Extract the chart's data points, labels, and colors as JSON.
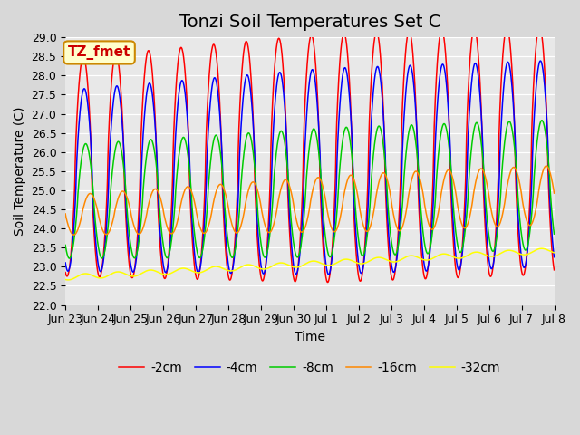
{
  "title": "Tonzi Soil Temperatures Set C",
  "xlabel": "Time",
  "ylabel": "Soil Temperature (C)",
  "ylim": [
    22.0,
    29.0
  ],
  "yticks": [
    22.0,
    22.5,
    23.0,
    23.5,
    24.0,
    24.5,
    25.0,
    25.5,
    26.0,
    26.5,
    27.0,
    27.5,
    28.0,
    28.5,
    29.0
  ],
  "series_colors": [
    "#ff0000",
    "#0000ff",
    "#00cc00",
    "#ff8800",
    "#ffff00"
  ],
  "series_labels": [
    "-2cm",
    "-4cm",
    "-8cm",
    "-16cm",
    "-32cm"
  ],
  "annotation_text": "TZ_fmet",
  "annotation_color": "#cc0000",
  "annotation_bg": "#ffffcc",
  "annotation_border": "#cc8800",
  "fig_bg_color": "#d8d8d8",
  "plot_bg_color": "#e8e8e8",
  "grid_color": "#ffffff",
  "title_fontsize": 14,
  "label_fontsize": 10,
  "tick_fontsize": 9,
  "legend_fontsize": 10,
  "n_days": 15,
  "x_tick_labels": [
    "Jun 23",
    "Jun 24",
    "Jun 25",
    "Jun 26",
    "Jun 27",
    "Jun 28",
    "Jun 29",
    "Jun 30",
    "Jul 1",
    "Jul 2",
    "Jul 3",
    "Jul 4",
    "Jul 5",
    "Jul 6",
    "Jul 7",
    "Jul 8"
  ]
}
